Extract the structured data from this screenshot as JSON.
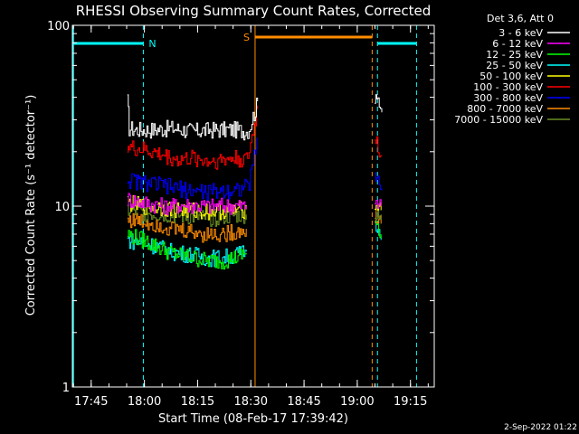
{
  "chart_data": {
    "type": "line",
    "title": "RHESSI Observing Summary Count Rates, Corrected",
    "xlabel": "Start Time (08-Feb-17 17:39:42)",
    "ylabel": "Corrected Count Rate (s⁻¹ detector⁻¹)",
    "y_scale": "log",
    "ylim": [
      1,
      100
    ],
    "y_ticks": [
      {
        "value": 1,
        "label": "1"
      },
      {
        "value": 10,
        "label": "10"
      },
      {
        "value": 100,
        "label": "100"
      }
    ],
    "x_unit": "minutes after 17:39:42",
    "xlim": [
      0,
      102
    ],
    "x_ticks": [
      {
        "value": 5.3,
        "label": "17:45"
      },
      {
        "value": 20.3,
        "label": "18:00"
      },
      {
        "value": 35.3,
        "label": "18:15"
      },
      {
        "value": 50.3,
        "label": "18:30"
      },
      {
        "value": 65.3,
        "label": "18:45"
      },
      {
        "value": 80.3,
        "label": "19:00"
      },
      {
        "value": 95.3,
        "label": "19:15"
      }
    ],
    "legend_header": "Det 3,6, Att 0",
    "legend_position": "right",
    "series": [
      {
        "name": "3 - 6 keV",
        "color": "#ffffff",
        "segments": [
          {
            "x": [
              15.5,
              16,
              18,
              22,
              28,
              34,
              40,
              46,
              49,
              49.8,
              50.6,
              51.6,
              52.2
            ],
            "y": [
              38,
              27,
              26.5,
              26.5,
              27,
              26,
              26.5,
              26.5,
              26,
              27,
              30,
              34,
              38
            ]
          },
          {
            "x": [
              85.2,
              85.8,
              86.5,
              87.2
            ],
            "y": [
              40,
              38,
              35,
              33
            ]
          }
        ]
      },
      {
        "name": "6 - 12 keV",
        "color": "#ff00ff",
        "segments": [
          {
            "x": [
              15.5,
              20,
              26,
              32,
              38,
              44,
              49
            ],
            "y": [
              11,
              10.5,
              10,
              10.2,
              10,
              10.1,
              10
            ]
          },
          {
            "x": [
              85.2,
              86,
              87
            ],
            "y": [
              10.5,
              10.2,
              10
            ]
          }
        ]
      },
      {
        "name": "12 - 25 keV",
        "color": "#00ff00",
        "segments": [
          {
            "x": [
              15.5,
              20,
              24,
              28,
              34,
              38,
              42,
              46,
              49
            ],
            "y": [
              7,
              6.5,
              6,
              5.5,
              5.2,
              5,
              5,
              5.2,
              5.5
            ]
          },
          {
            "x": [
              85.2,
              86,
              87
            ],
            "y": [
              8,
              7.5,
              7
            ]
          }
        ]
      },
      {
        "name": "25 - 50 keV",
        "color": "#00ffff",
        "segments": [
          {
            "x": [
              15.5,
              20,
              24,
              28,
              34,
              38,
              42,
              46,
              49
            ],
            "y": [
              6.5,
              6.3,
              6,
              5.6,
              5.4,
              5.2,
              5.2,
              5.4,
              5.6
            ]
          },
          {
            "x": [
              85.2,
              86,
              87
            ],
            "y": [
              7.5,
              7,
              6.5
            ]
          }
        ]
      },
      {
        "name": "50 - 100 keV",
        "color": "#ffff00",
        "segments": [
          {
            "x": [
              15.5,
              20,
              26,
              32,
              38,
              44,
              49
            ],
            "y": [
              10.5,
              10,
              9.8,
              9.5,
              9.4,
              9.5,
              9.6
            ]
          },
          {
            "x": [
              85.2,
              86,
              87
            ],
            "y": [
              10.5,
              10,
              9.5
            ]
          }
        ]
      },
      {
        "name": "100 - 300 keV",
        "color": "#ff0000",
        "segments": [
          {
            "x": [
              15.5,
              16,
              20,
              26,
              30,
              34,
              38,
              42,
              46,
              49,
              49.8,
              50.6,
              51.6,
              52.2
            ],
            "y": [
              22,
              21,
              20.5,
              19,
              18,
              18.5,
              17.8,
              18,
              18.5,
              18,
              20,
              24,
              30,
              36
            ]
          },
          {
            "x": [
              85.2,
              85.8,
              86.5,
              87.2
            ],
            "y": [
              24,
              22,
              20,
              19
            ]
          }
        ]
      },
      {
        "name": "300 - 800 keV",
        "color": "#0000ff",
        "segments": [
          {
            "x": [
              15.5,
              20,
              26,
              30,
              34,
              38,
              42,
              46,
              49,
              49.8,
              50.6,
              51.6,
              52
            ],
            "y": [
              14,
              13.5,
              13,
              12.5,
              12.2,
              12,
              12.2,
              12.4,
              12.8,
              13.5,
              16,
              20,
              24
            ]
          },
          {
            "x": [
              85.2,
              85.8,
              86.5,
              87.2
            ],
            "y": [
              15,
              14,
              13,
              12.5
            ]
          }
        ]
      },
      {
        "name": "800 - 7000 keV",
        "color": "#ff8c00",
        "segments": [
          {
            "x": [
              15.5,
              20,
              24,
              28,
              34,
              38,
              42,
              46,
              49
            ],
            "y": [
              8.5,
              8.2,
              8,
              7.5,
              7.2,
              7,
              7,
              7.2,
              7.5
            ]
          },
          {
            "x": [
              85.2,
              86,
              87
            ],
            "y": [
              9,
              8.5,
              8
            ]
          }
        ]
      },
      {
        "name": "7000 - 15000 keV",
        "color": "#6b8e23",
        "segments": [
          {
            "x": [
              15.5,
              20,
              26,
              32,
              38,
              44,
              49
            ],
            "y": [
              9.5,
              9.2,
              9,
              8.8,
              8.6,
              8.8,
              9
            ]
          },
          {
            "x": [
              85.2,
              86,
              87
            ],
            "y": [
              9.5,
              9.2,
              9
            ]
          }
        ]
      }
    ],
    "annotations": {
      "night_label": "N",
      "saa_label": "S",
      "night_color": "#00ffff",
      "saa_color": "#ff8c00",
      "night_bars": [
        {
          "x0": 0,
          "x1": 20.0
        },
        {
          "x0": 86.0,
          "x1": 97.0
        }
      ],
      "night_lines": [
        20.0,
        86.0,
        97.0
      ],
      "saa_bar": {
        "x0": 51.5,
        "x1": 84.5
      },
      "saa_lines": [
        51.5,
        84.5
      ]
    }
  },
  "footer_date": "2-Sep-2022 01:22"
}
